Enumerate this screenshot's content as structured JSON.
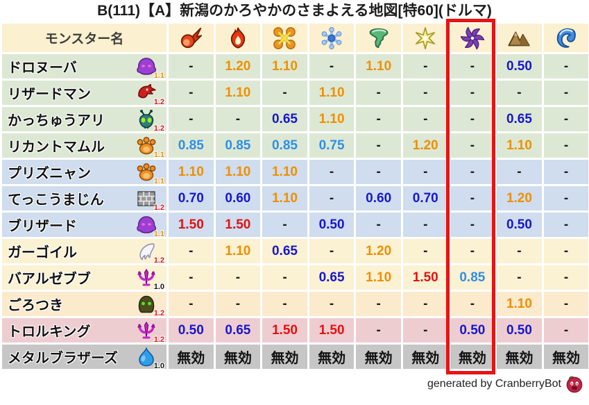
{
  "title": "B(111)【A】新潟のかろやかのさまよえる地図[特60](ドルマ)",
  "footer": {
    "credit": "generated by CranberryBot",
    "icon": "cranberry-bot-icon"
  },
  "colors": {
    "highlight_box_red": "#e71414",
    "value_orange": "#ef8f00",
    "value_red": "#e31212",
    "value_dark_blue": "#1717cf",
    "value_light_blue": "#2e8fe8",
    "header_bg": "#fbf0cf",
    "row_green": "#dde8d4",
    "row_blue": "#cfddee",
    "row_cream": "#fbf1d3",
    "row_peach": "#fceacd",
    "row_pink": "#eecdd1",
    "row_gray": "#c6c6c6"
  },
  "table": {
    "name_header": "モンスター名",
    "element_columns": [
      {
        "icon": "fireball-icon"
      },
      {
        "icon": "flame-icon"
      },
      {
        "icon": "burst-icon"
      },
      {
        "icon": "snowflake-icon"
      },
      {
        "icon": "tornado-icon"
      },
      {
        "icon": "sparkle-icon"
      },
      {
        "icon": "dark-pinwheel-icon",
        "highlighted": true
      },
      {
        "icon": "mountain-icon"
      },
      {
        "icon": "wave-icon"
      }
    ],
    "highlight_column_index": 6,
    "rows": [
      {
        "name": "ドロヌーバ",
        "icon": "purple-blob-icon",
        "badge": "1.1",
        "badge_color": "orange",
        "tint": "green",
        "values": [
          "-",
          "1.20",
          "1.10",
          "-",
          "1.10",
          "-",
          "-",
          "0.50",
          "-"
        ]
      },
      {
        "name": "リザードマン",
        "icon": "red-dragon-icon",
        "badge": "1.2",
        "badge_color": "red",
        "tint": "green",
        "values": [
          "-",
          "1.10",
          "-",
          "1.10",
          "-",
          "-",
          "-",
          "-",
          "-"
        ]
      },
      {
        "name": "かっちゅうアリ",
        "icon": "ant-icon",
        "badge": "1.2",
        "badge_color": "red",
        "tint": "green",
        "values": [
          "-",
          "-",
          "0.65",
          "1.10",
          "-",
          "-",
          "-",
          "0.65",
          "-"
        ]
      },
      {
        "name": "リカントマムル",
        "icon": "paw-icon",
        "badge": "1.1",
        "badge_color": "orange",
        "tint": "green",
        "values": [
          "0.85",
          "0.85",
          "0.85",
          "0.75",
          "-",
          "1.20",
          "-",
          "1.10",
          "-"
        ]
      },
      {
        "name": "プリズニャン",
        "icon": "paw-icon",
        "badge": "1.1",
        "badge_color": "orange",
        "tint": "blue",
        "values": [
          "1.10",
          "1.10",
          "1.10",
          "-",
          "-",
          "-",
          "-",
          "-",
          "-"
        ]
      },
      {
        "name": "てっこうまじん",
        "icon": "brick-icon",
        "badge": "1.2",
        "badge_color": "red",
        "tint": "blue",
        "values": [
          "0.70",
          "0.60",
          "1.10",
          "-",
          "0.60",
          "0.70",
          "-",
          "1.20",
          "-"
        ]
      },
      {
        "name": "ブリザード",
        "icon": "purple-blob-icon",
        "badge": "1.1",
        "badge_color": "orange",
        "tint": "blue",
        "values": [
          "1.50",
          "1.50",
          "-",
          "0.50",
          "-",
          "-",
          "-",
          "0.50",
          "-"
        ]
      },
      {
        "name": "ガーゴイル",
        "icon": "wing-icon",
        "badge": "1.2",
        "badge_color": "red",
        "tint": "cream",
        "values": [
          "-",
          "1.10",
          "0.65",
          "-",
          "1.20",
          "-",
          "-",
          "-",
          "-"
        ]
      },
      {
        "name": "バアルゼブブ",
        "icon": "trident-icon",
        "badge": "1.0",
        "badge_color": "black",
        "tint": "cream",
        "values": [
          "-",
          "-",
          "-",
          "0.65",
          "1.10",
          "1.50",
          "0.85",
          "-",
          "-"
        ]
      },
      {
        "name": "ごろつき",
        "icon": "hood-icon",
        "badge": "1.2",
        "badge_color": "red",
        "tint": "peach",
        "values": [
          "-",
          "-",
          "-",
          "-",
          "-",
          "-",
          "-",
          "1.10",
          "-"
        ]
      },
      {
        "name": "トロルキング",
        "icon": "trident-icon",
        "badge": "1.2",
        "badge_color": "red",
        "tint": "pink",
        "values": [
          "0.50",
          "0.65",
          "1.50",
          "1.50",
          "-",
          "-",
          "0.50",
          "0.50",
          "-"
        ]
      },
      {
        "name": "メタルブラザーズ",
        "icon": "slime-icon",
        "badge": "1.0",
        "badge_color": "black",
        "tint": "gray",
        "values": [
          "無効",
          "無効",
          "無効",
          "無効",
          "無効",
          "無効",
          "無効",
          "無効",
          "無効"
        ]
      }
    ]
  },
  "chart_data": {
    "type": "table",
    "title": "B(111)【A】新潟のかろやかのさまよえる地図[特60](ドルマ)",
    "columns": [
      "モンスター名",
      "fireball",
      "flame",
      "burst",
      "snowflake",
      "tornado",
      "sparkle",
      "dark-pinwheel",
      "mountain",
      "wave"
    ],
    "highlighted_column": "dark-pinwheel",
    "rows": [
      [
        "ドロヌーバ",
        "-",
        "1.20",
        "1.10",
        "-",
        "1.10",
        "-",
        "-",
        "0.50",
        "-"
      ],
      [
        "リザードマン",
        "-",
        "1.10",
        "-",
        "1.10",
        "-",
        "-",
        "-",
        "-",
        "-"
      ],
      [
        "かっちゅうアリ",
        "-",
        "-",
        "0.65",
        "1.10",
        "-",
        "-",
        "-",
        "0.65",
        "-"
      ],
      [
        "リカントマムル",
        "0.85",
        "0.85",
        "0.85",
        "0.75",
        "-",
        "1.20",
        "-",
        "1.10",
        "-"
      ],
      [
        "プリズニャン",
        "1.10",
        "1.10",
        "1.10",
        "-",
        "-",
        "-",
        "-",
        "-",
        "-"
      ],
      [
        "てっこうまじん",
        "0.70",
        "0.60",
        "1.10",
        "-",
        "0.60",
        "0.70",
        "-",
        "1.20",
        "-"
      ],
      [
        "ブリザード",
        "1.50",
        "1.50",
        "-",
        "0.50",
        "-",
        "-",
        "-",
        "0.50",
        "-"
      ],
      [
        "ガーゴイル",
        "-",
        "1.10",
        "0.65",
        "-",
        "1.20",
        "-",
        "-",
        "-",
        "-"
      ],
      [
        "バアルゼブブ",
        "-",
        "-",
        "-",
        "0.65",
        "1.10",
        "1.50",
        "0.85",
        "-",
        "-"
      ],
      [
        "ごろつき",
        "-",
        "-",
        "-",
        "-",
        "-",
        "-",
        "-",
        "1.10",
        "-"
      ],
      [
        "トロルキング",
        "0.50",
        "0.65",
        "1.50",
        "1.50",
        "-",
        "-",
        "0.50",
        "0.50",
        "-"
      ],
      [
        "メタルブラザーズ",
        "無効",
        "無効",
        "無効",
        "無効",
        "無効",
        "無効",
        "無効",
        "無効",
        "無効"
      ]
    ]
  }
}
